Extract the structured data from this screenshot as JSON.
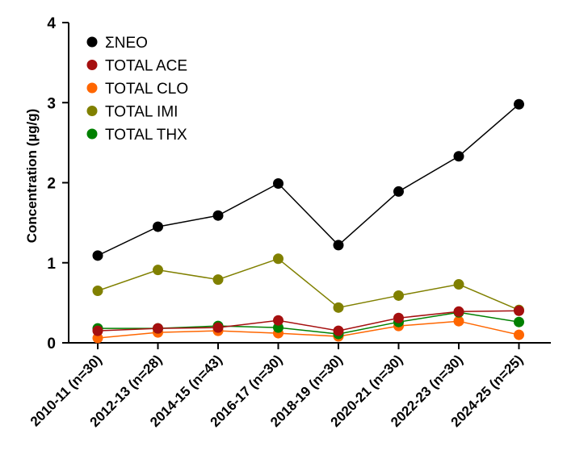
{
  "chart_data": {
    "type": "line",
    "title": "",
    "xlabel": "",
    "ylabel": "Concentration (µg/g)",
    "ylim": [
      0,
      4
    ],
    "yticks": [
      "0",
      "1",
      "2",
      "3",
      "4"
    ],
    "categories": [
      "2010-11 (n=30)",
      "2012-13 (n=28)",
      "2014-15 (n=43)",
      "2016-17 (n=30)",
      "2018-19 (n=30)",
      "2020-21 (n=30)",
      "2022-23 (n=30)",
      "2024-25 (n=25)"
    ],
    "legend_position": "top-left",
    "grid": false,
    "series": [
      {
        "name": "ΣNEO",
        "color": "#000000",
        "values": [
          1.09,
          1.45,
          1.59,
          1.99,
          1.22,
          1.89,
          2.33,
          2.98
        ]
      },
      {
        "name": "TOTAL ACE",
        "color": "#a50f0f",
        "values": [
          0.15,
          0.18,
          0.19,
          0.28,
          0.15,
          0.31,
          0.39,
          0.4
        ]
      },
      {
        "name": "TOTAL CLO",
        "color": "#ff6600",
        "values": [
          0.06,
          0.13,
          0.15,
          0.12,
          0.08,
          0.21,
          0.27,
          0.1
        ]
      },
      {
        "name": "TOTAL IMI",
        "color": "#808000",
        "values": [
          0.65,
          0.91,
          0.79,
          1.05,
          0.44,
          0.59,
          0.73,
          0.41
        ]
      },
      {
        "name": "TOTAL THX",
        "color": "#008000",
        "values": [
          0.18,
          0.18,
          0.21,
          0.19,
          0.11,
          0.26,
          0.38,
          0.26
        ]
      }
    ]
  }
}
